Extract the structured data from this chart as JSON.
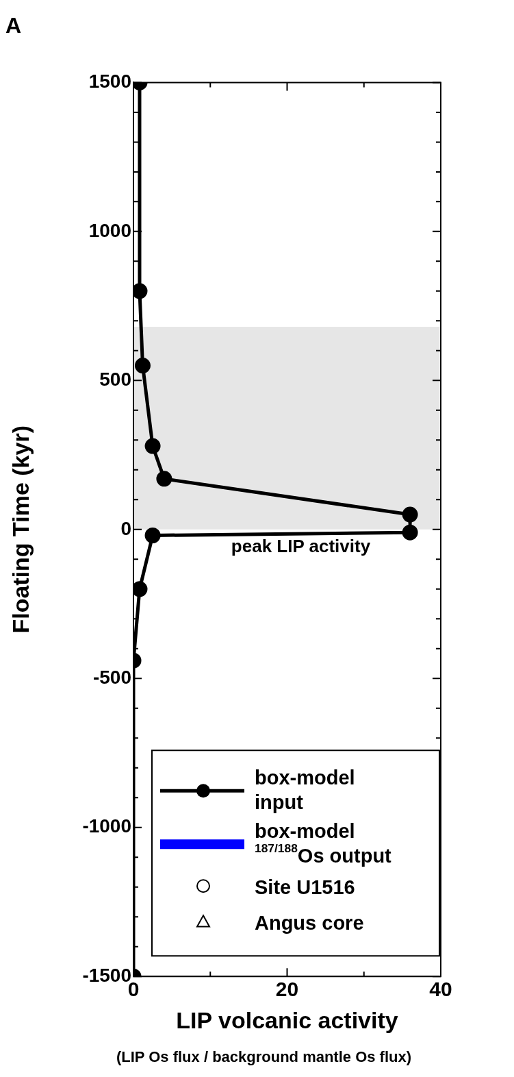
{
  "chart_data": {
    "type": "line",
    "title": "A",
    "xlabel": "LIP volcanic activity",
    "ylabel": "Floating Time (kyr)",
    "xlim": [
      0,
      40
    ],
    "xticks": [
      0,
      {
        "value": 10,
        "label": null
      },
      20,
      {
        "value": 30,
        "label": null
      },
      40
    ],
    "ylim": [
      -1500,
      1500
    ],
    "yticks": [
      -1500,
      {
        "value": -1400,
        "label": null
      },
      {
        "value": -1300,
        "label": null
      },
      {
        "value": -1200,
        "label": null
      },
      {
        "value": -1100,
        "label": null
      },
      -1000,
      {
        "value": -900,
        "label": null
      },
      {
        "value": -800,
        "label": null
      },
      {
        "value": -700,
        "label": null
      },
      {
        "value": -600,
        "label": null
      },
      -500,
      {
        "value": -400,
        "label": null
      },
      {
        "value": -300,
        "label": null
      },
      {
        "value": -200,
        "label": null
      },
      {
        "value": -100,
        "label": null
      },
      0,
      {
        "value": 100,
        "label": null
      },
      {
        "value": 200,
        "label": null
      },
      {
        "value": 300,
        "label": null
      },
      {
        "value": 400,
        "label": null
      },
      500,
      {
        "value": 600,
        "label": null
      },
      {
        "value": 700,
        "label": null
      },
      {
        "value": 800,
        "label": null
      },
      {
        "value": 900,
        "label": null
      },
      1000,
      {
        "value": 1100,
        "label": null
      },
      {
        "value": 1200,
        "label": null
      },
      {
        "value": 1300,
        "label": null
      },
      {
        "value": 1400,
        "label": null
      },
      1500
    ],
    "grid": false,
    "legend": "bottom right",
    "bands": [
      {
        "axis": "y",
        "from": 0,
        "to": 680,
        "color": "#e6e6e6"
      }
    ],
    "series": [
      {
        "name": "box-model input",
        "color": "#000000",
        "marker": "circle",
        "line_style": "solid",
        "x": [
          0.8,
          0.8,
          1.2,
          2.5,
          4,
          36,
          36,
          2.5,
          0.8,
          0,
          0
        ],
        "values": [
          1500,
          800,
          550,
          280,
          170,
          50,
          -10,
          -20,
          -200,
          -440,
          -1500
        ]
      },
      {
        "name": "box-model $^{187/188}$Os output",
        "color": "#0000ff",
        "type": "line",
        "marker": "none",
        "line_style": "solid"
      },
      {
        "name": "Site U1516",
        "color": "#000000",
        "type": "scatter",
        "marker": "circle"
      },
      {
        "name": "Angus core",
        "color": "#000000",
        "type": "scatter",
        "marker": "triangle"
      }
    ],
    "annotations": [
      "peak LIP activity",
      "(LIP Os flux / background mantle Os flux)"
    ]
  }
}
